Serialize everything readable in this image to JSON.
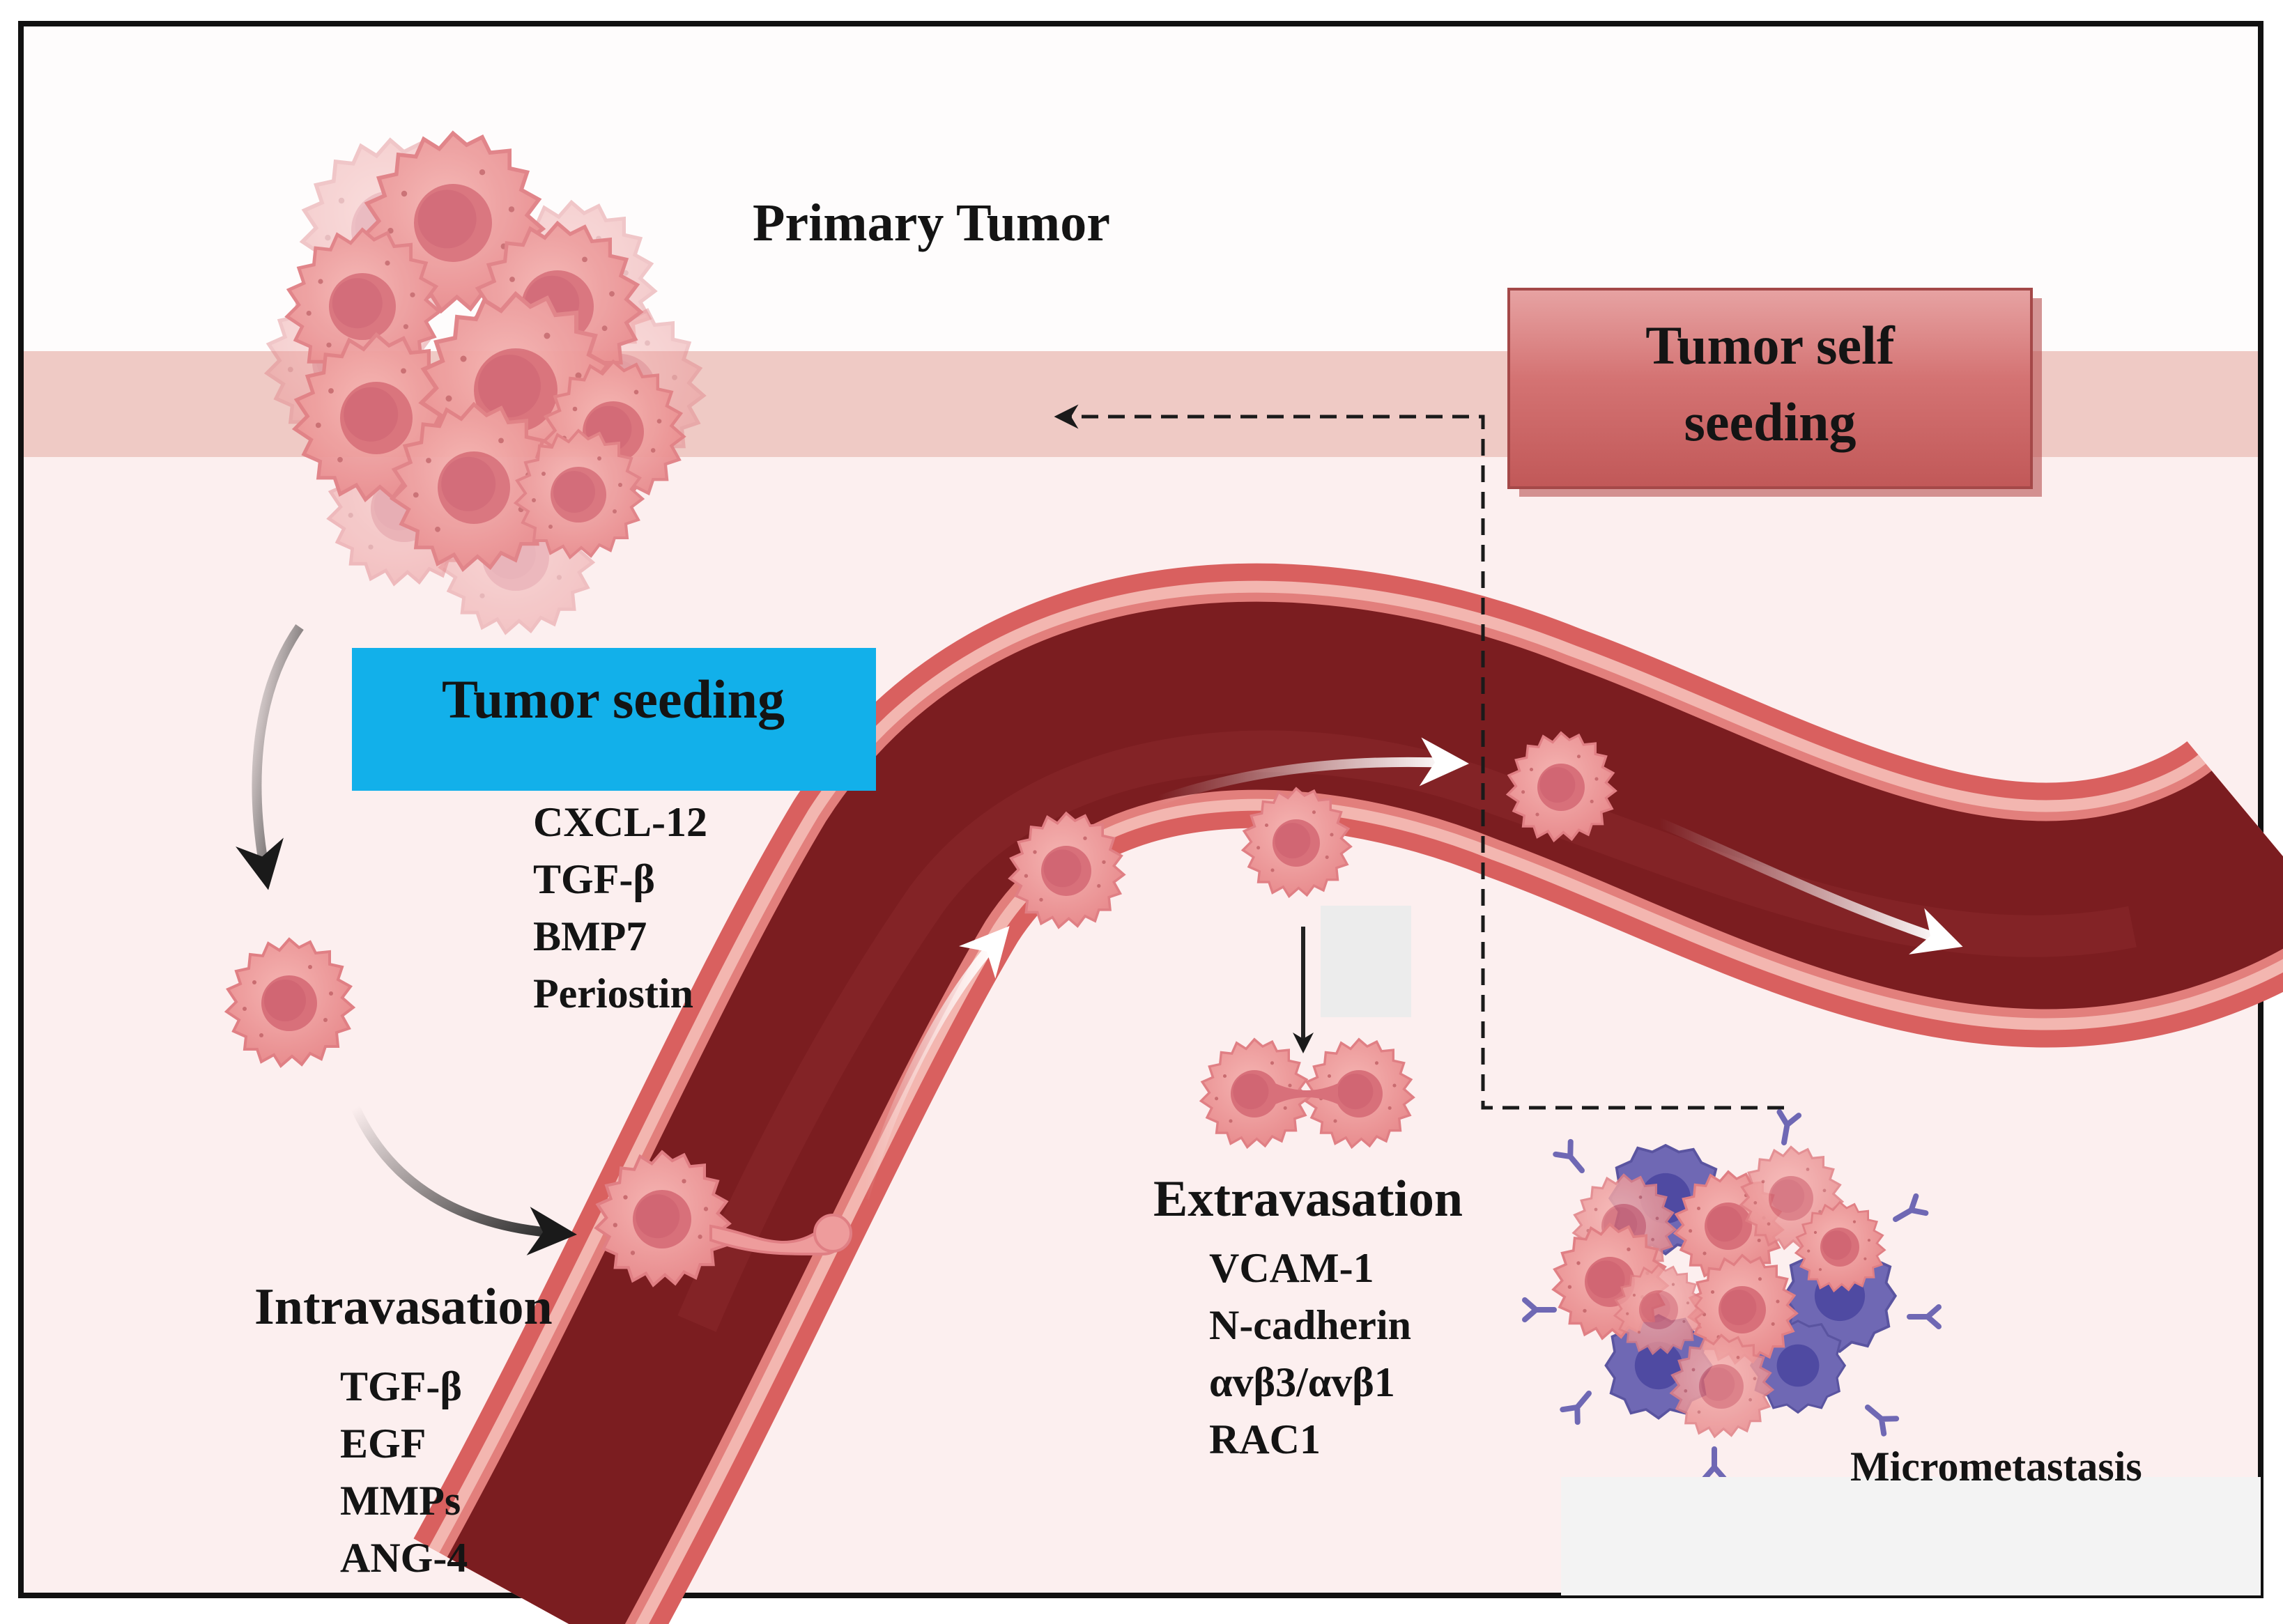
{
  "diagram": {
    "title": "Primary Tumor",
    "self_seeding_box": {
      "line1": "Tumor self",
      "line2": "seeding"
    },
    "seeding_box": {
      "label": "Tumor seeding"
    },
    "seeding_factors": [
      "CXCL-12",
      "TGF-β",
      "BMP7",
      "Periostin"
    ],
    "intravasation": {
      "label": "Intravasation",
      "factors": [
        "TGF-β",
        "EGF",
        "MMPs",
        "ANG-4"
      ]
    },
    "extravasation": {
      "label": "Extravasation",
      "factors": [
        "VCAM-1",
        "N-cadherin",
        "αvβ3/αvβ1",
        "RAC1"
      ]
    },
    "micrometastasis": {
      "label": "Micrometastasis"
    },
    "colors": {
      "tissue": "#fcefef",
      "membrane_band": "#efc9c4",
      "vessel_outer": "#d95f5f",
      "vessel_wall": "#f2b3ad",
      "vessel_lumen": "#7a1c1f",
      "cell_fill": "#ee9c9c",
      "cell_nucleus": "#d66c74",
      "immune_cell": "#6f68b4",
      "seeding_box": "#12b0ea",
      "self_seeding_box": "#d06d6d"
    }
  }
}
